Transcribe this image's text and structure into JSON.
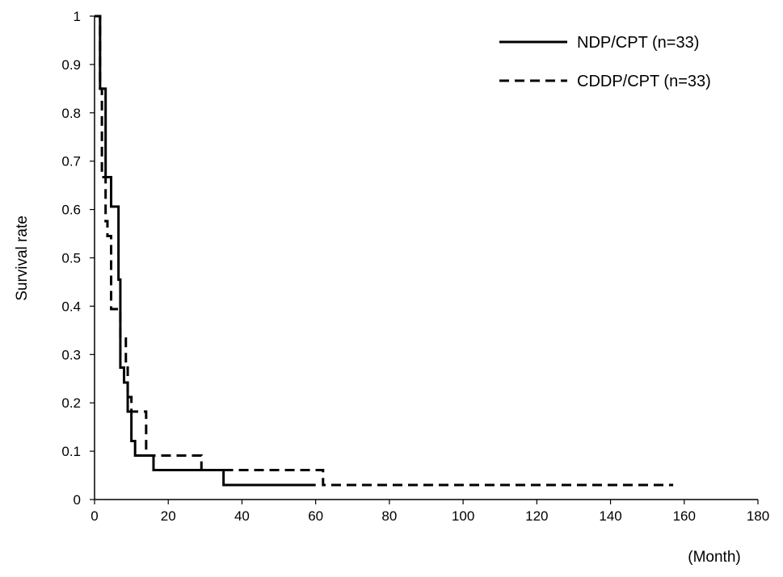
{
  "chart_data": {
    "type": "line",
    "title": "",
    "xlabel": "(Month)",
    "ylabel": "Survival rate",
    "xlim": [
      0,
      180
    ],
    "ylim": [
      0,
      1
    ],
    "xticks": [
      0,
      20,
      40,
      60,
      80,
      100,
      120,
      140,
      160,
      180
    ],
    "yticks": [
      0,
      0.1,
      0.2,
      0.3,
      0.4,
      0.5,
      0.6,
      0.7,
      0.8,
      0.9,
      1
    ],
    "ytick_labels": [
      "0",
      "0.1",
      "0.2",
      "0.3",
      "0.4",
      "0.5",
      "0.6",
      "0.7",
      "0.8",
      "0.9",
      "1"
    ],
    "xtick_labels": [
      "0",
      "20",
      "40",
      "60",
      "80",
      "100",
      "120",
      "140",
      "160",
      "180"
    ],
    "grid": false,
    "legend_position": "top-right",
    "step": true,
    "series": [
      {
        "name": "NDP/CPT (n=33)",
        "style": "solid",
        "x": [
          0,
          1.5,
          3,
          4.5,
          6.5,
          7,
          8,
          9,
          10,
          11,
          14,
          16,
          35,
          60
        ],
        "y": [
          1,
          0.85,
          0.667,
          0.606,
          0.455,
          0.273,
          0.242,
          0.182,
          0.121,
          0.091,
          0.091,
          0.061,
          0.03,
          0.03
        ]
      },
      {
        "name": "CDDP/CPT (n=33)",
        "style": "dashed",
        "x": [
          0,
          1.5,
          2,
          3,
          3.5,
          4.5,
          7,
          8.5,
          9,
          10,
          13,
          14,
          29,
          62,
          157
        ],
        "y": [
          1,
          0.85,
          0.667,
          0.576,
          0.545,
          0.394,
          0.333,
          0.273,
          0.212,
          0.182,
          0.182,
          0.091,
          0.061,
          0.03,
          0.03
        ]
      }
    ]
  }
}
